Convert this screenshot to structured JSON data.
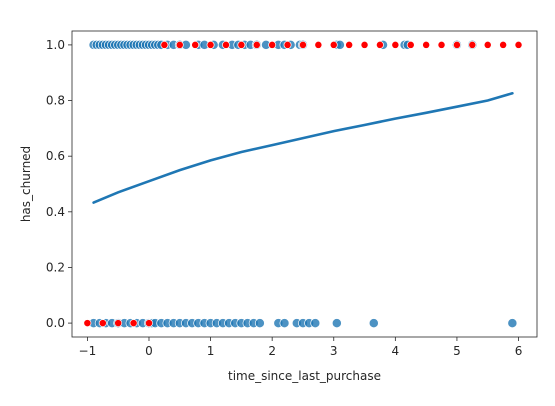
{
  "chart_data": {
    "type": "scatter",
    "title": "",
    "xlabel": "time_since_last_purchase",
    "ylabel": "has_churned",
    "xlim": [
      -1.25,
      6.3
    ],
    "ylim": [
      -0.05,
      1.05
    ],
    "x_ticks": [
      -1,
      0,
      1,
      2,
      3,
      4,
      5,
      6
    ],
    "y_ticks": [
      0.0,
      0.2,
      0.4,
      0.6,
      0.8,
      1.0
    ],
    "x_tick_labels": [
      "−1",
      "0",
      "1",
      "2",
      "3",
      "4",
      "5",
      "6"
    ],
    "y_tick_labels": [
      "0.0",
      "0.2",
      "0.4",
      "0.6",
      "0.8",
      "1.0"
    ],
    "grid": false,
    "legend": "none",
    "series": [
      {
        "kind": "scatter",
        "color": "#1f77b4",
        "opacity": 0.8,
        "points": [
          {
            "x": -0.9,
            "y": 1
          },
          {
            "x": -0.85,
            "y": 1
          },
          {
            "x": -0.8,
            "y": 1
          },
          {
            "x": -0.75,
            "y": 1
          },
          {
            "x": -0.7,
            "y": 1
          },
          {
            "x": -0.65,
            "y": 1
          },
          {
            "x": -0.6,
            "y": 1
          },
          {
            "x": -0.55,
            "y": 1
          },
          {
            "x": -0.5,
            "y": 1
          },
          {
            "x": -0.45,
            "y": 1
          },
          {
            "x": -0.4,
            "y": 1
          },
          {
            "x": -0.35,
            "y": 1
          },
          {
            "x": -0.3,
            "y": 1
          },
          {
            "x": -0.25,
            "y": 1
          },
          {
            "x": -0.2,
            "y": 1
          },
          {
            "x": -0.15,
            "y": 1
          },
          {
            "x": -0.1,
            "y": 1
          },
          {
            "x": -0.05,
            "y": 1
          },
          {
            "x": 0.0,
            "y": 1
          },
          {
            "x": 0.05,
            "y": 1
          },
          {
            "x": 0.1,
            "y": 1
          },
          {
            "x": 0.15,
            "y": 1
          },
          {
            "x": 0.2,
            "y": 1
          },
          {
            "x": 0.3,
            "y": 1
          },
          {
            "x": 0.4,
            "y": 1
          },
          {
            "x": 0.5,
            "y": 1
          },
          {
            "x": 0.6,
            "y": 1
          },
          {
            "x": 0.8,
            "y": 1
          },
          {
            "x": 0.9,
            "y": 1
          },
          {
            "x": 1.05,
            "y": 1
          },
          {
            "x": 1.2,
            "y": 1
          },
          {
            "x": 1.35,
            "y": 1
          },
          {
            "x": 1.45,
            "y": 1
          },
          {
            "x": 1.55,
            "y": 1
          },
          {
            "x": 1.65,
            "y": 1
          },
          {
            "x": 1.75,
            "y": 1
          },
          {
            "x": 1.9,
            "y": 1
          },
          {
            "x": 2.1,
            "y": 1
          },
          {
            "x": 2.2,
            "y": 1
          },
          {
            "x": 2.3,
            "y": 1
          },
          {
            "x": 2.45,
            "y": 1
          },
          {
            "x": 2.5,
            "y": 1
          },
          {
            "x": 3.05,
            "y": 1
          },
          {
            "x": 3.1,
            "y": 1
          },
          {
            "x": 3.8,
            "y": 1
          },
          {
            "x": 4.15,
            "y": 1
          },
          {
            "x": 4.2,
            "y": 1
          },
          {
            "x": 5.0,
            "y": 1
          },
          {
            "x": 5.25,
            "y": 1
          },
          {
            "x": -0.9,
            "y": 0
          },
          {
            "x": -0.8,
            "y": 0
          },
          {
            "x": -0.7,
            "y": 0
          },
          {
            "x": -0.6,
            "y": 0
          },
          {
            "x": -0.5,
            "y": 0
          },
          {
            "x": -0.4,
            "y": 0
          },
          {
            "x": -0.3,
            "y": 0
          },
          {
            "x": -0.2,
            "y": 0
          },
          {
            "x": -0.1,
            "y": 0
          },
          {
            "x": 0.0,
            "y": 0
          },
          {
            "x": 0.05,
            "y": 0
          },
          {
            "x": 0.1,
            "y": 0
          },
          {
            "x": 0.2,
            "y": 0
          },
          {
            "x": 0.3,
            "y": 0
          },
          {
            "x": 0.4,
            "y": 0
          },
          {
            "x": 0.5,
            "y": 0
          },
          {
            "x": 0.6,
            "y": 0
          },
          {
            "x": 0.7,
            "y": 0
          },
          {
            "x": 0.8,
            "y": 0
          },
          {
            "x": 0.9,
            "y": 0
          },
          {
            "x": 1.0,
            "y": 0
          },
          {
            "x": 1.1,
            "y": 0
          },
          {
            "x": 1.2,
            "y": 0
          },
          {
            "x": 1.3,
            "y": 0
          },
          {
            "x": 1.4,
            "y": 0
          },
          {
            "x": 1.5,
            "y": 0
          },
          {
            "x": 1.6,
            "y": 0
          },
          {
            "x": 1.7,
            "y": 0
          },
          {
            "x": 1.8,
            "y": 0
          },
          {
            "x": 2.1,
            "y": 0
          },
          {
            "x": 2.2,
            "y": 0
          },
          {
            "x": 2.4,
            "y": 0
          },
          {
            "x": 2.5,
            "y": 0
          },
          {
            "x": 2.6,
            "y": 0
          },
          {
            "x": 2.7,
            "y": 0
          },
          {
            "x": 3.05,
            "y": 0
          },
          {
            "x": 3.65,
            "y": 0
          },
          {
            "x": 5.9,
            "y": 0
          }
        ]
      },
      {
        "kind": "scatter",
        "color": "#ff0000",
        "opacity": 1,
        "points": [
          {
            "x": 0.25,
            "y": 1
          },
          {
            "x": 0.5,
            "y": 1
          },
          {
            "x": 0.75,
            "y": 1
          },
          {
            "x": 1.0,
            "y": 1
          },
          {
            "x": 1.25,
            "y": 1
          },
          {
            "x": 1.5,
            "y": 1
          },
          {
            "x": 1.75,
            "y": 1
          },
          {
            "x": 2.0,
            "y": 1
          },
          {
            "x": 2.25,
            "y": 1
          },
          {
            "x": 2.5,
            "y": 1
          },
          {
            "x": 2.75,
            "y": 1
          },
          {
            "x": 3.0,
            "y": 1
          },
          {
            "x": 3.25,
            "y": 1
          },
          {
            "x": 3.5,
            "y": 1
          },
          {
            "x": 3.75,
            "y": 1
          },
          {
            "x": 4.0,
            "y": 1
          },
          {
            "x": 4.25,
            "y": 1
          },
          {
            "x": 4.5,
            "y": 1
          },
          {
            "x": 4.75,
            "y": 1
          },
          {
            "x": 5.0,
            "y": 1
          },
          {
            "x": 5.25,
            "y": 1
          },
          {
            "x": 5.5,
            "y": 1
          },
          {
            "x": 5.75,
            "y": 1
          },
          {
            "x": 6.0,
            "y": 1
          },
          {
            "x": -1.0,
            "y": 0
          },
          {
            "x": -0.75,
            "y": 0
          },
          {
            "x": -0.5,
            "y": 0
          },
          {
            "x": -0.25,
            "y": 0
          },
          {
            "x": 0.0,
            "y": 0
          }
        ]
      },
      {
        "kind": "line",
        "color": "#1f77b4",
        "points": [
          {
            "x": -0.9,
            "y": 0.433
          },
          {
            "x": -0.5,
            "y": 0.47
          },
          {
            "x": 0.0,
            "y": 0.51
          },
          {
            "x": 0.5,
            "y": 0.55
          },
          {
            "x": 1.0,
            "y": 0.585
          },
          {
            "x": 1.5,
            "y": 0.615
          },
          {
            "x": 2.0,
            "y": 0.64
          },
          {
            "x": 2.5,
            "y": 0.665
          },
          {
            "x": 3.0,
            "y": 0.69
          },
          {
            "x": 3.5,
            "y": 0.712
          },
          {
            "x": 4.0,
            "y": 0.735
          },
          {
            "x": 4.5,
            "y": 0.756
          },
          {
            "x": 5.0,
            "y": 0.778
          },
          {
            "x": 5.5,
            "y": 0.8
          },
          {
            "x": 5.9,
            "y": 0.826
          }
        ]
      }
    ]
  }
}
